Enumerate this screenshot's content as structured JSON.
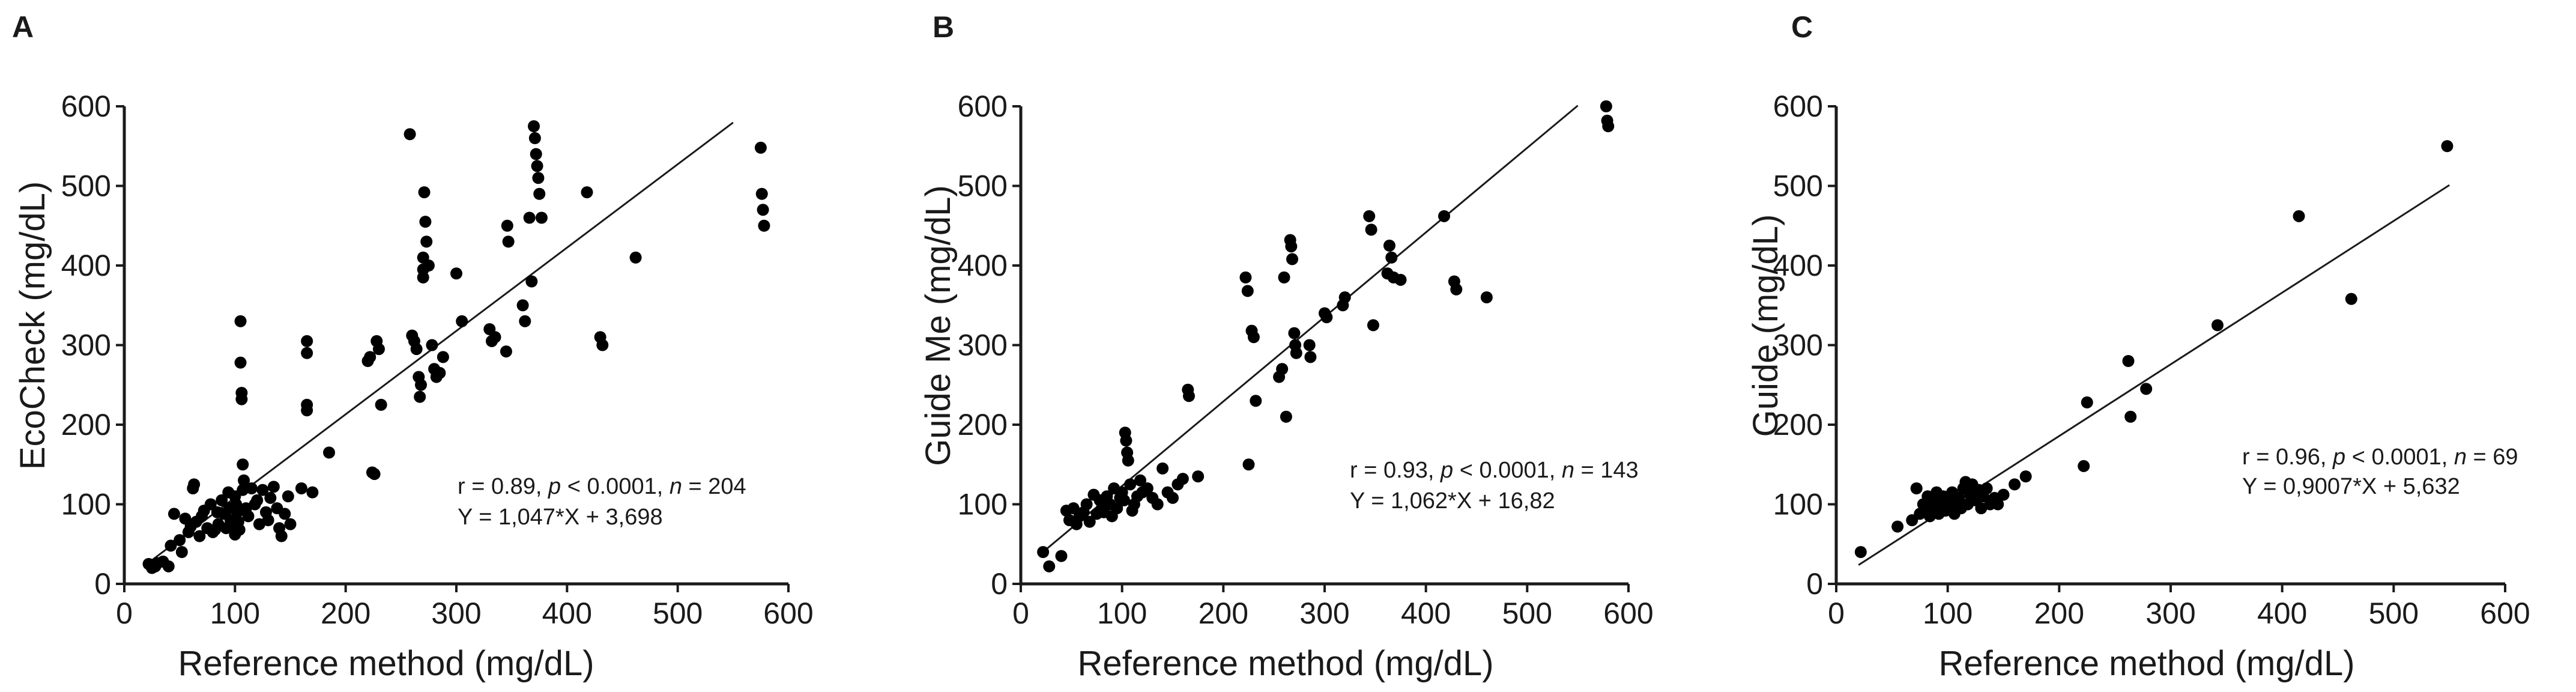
{
  "figure": {
    "panels": [
      "A",
      "B",
      "C"
    ]
  },
  "chart_data": [
    {
      "panel": "A",
      "type": "scatter",
      "xlabel": "Reference method (mg/dL)",
      "ylabel": "EcoCheck (mg/dL)",
      "xlim": [
        0,
        600
      ],
      "ylim": [
        0,
        600
      ],
      "xticks": [
        0,
        100,
        200,
        300,
        400,
        500,
        600
      ],
      "yticks": [
        0,
        100,
        200,
        300,
        400,
        500,
        600
      ],
      "stats": {
        "r": "r = 0.89, ",
        "p_sym": "p",
        "p_val": " < 0.0001, ",
        "n_sym": "n",
        "n_val": " =  204"
      },
      "equation": "Y = 1,047*X + 3,698",
      "fit": {
        "slope": 1.047,
        "intercept": 3.698,
        "x_range": [
          20,
          550
        ]
      },
      "points": [
        [
          22,
          25
        ],
        [
          25,
          20
        ],
        [
          28,
          22
        ],
        [
          30,
          26
        ],
        [
          35,
          28
        ],
        [
          40,
          22
        ],
        [
          42,
          48
        ],
        [
          45,
          88
        ],
        [
          50,
          55
        ],
        [
          52,
          40
        ],
        [
          55,
          82
        ],
        [
          58,
          65
        ],
        [
          60,
          72
        ],
        [
          62,
          120
        ],
        [
          63,
          125
        ],
        [
          65,
          78
        ],
        [
          68,
          60
        ],
        [
          70,
          85
        ],
        [
          72,
          92
        ],
        [
          75,
          70
        ],
        [
          78,
          100
        ],
        [
          80,
          65
        ],
        [
          82,
          68
        ],
        [
          84,
          90
        ],
        [
          85,
          75
        ],
        [
          88,
          105
        ],
        [
          90,
          88
        ],
        [
          92,
          70
        ],
        [
          94,
          115
        ],
        [
          95,
          95
        ],
        [
          96,
          80
        ],
        [
          98,
          72
        ],
        [
          100,
          110
        ],
        [
          100,
          62
        ],
        [
          101,
          100
        ],
        [
          102,
          90
        ],
        [
          103,
          78
        ],
        [
          104,
          68
        ],
        [
          105,
          330
        ],
        [
          105,
          278
        ],
        [
          106,
          240
        ],
        [
          106,
          232
        ],
        [
          107,
          150
        ],
        [
          107,
          118
        ],
        [
          108,
          130
        ],
        [
          110,
          95
        ],
        [
          112,
          85
        ],
        [
          115,
          120
        ],
        [
          118,
          100
        ],
        [
          120,
          105
        ],
        [
          122,
          75
        ],
        [
          125,
          118
        ],
        [
          128,
          90
        ],
        [
          130,
          80
        ],
        [
          132,
          108
        ],
        [
          135,
          122
        ],
        [
          138,
          95
        ],
        [
          140,
          70
        ],
        [
          142,
          60
        ],
        [
          145,
          88
        ],
        [
          148,
          110
        ],
        [
          150,
          75
        ],
        [
          160,
          120
        ],
        [
          165,
          305
        ],
        [
          165,
          290
        ],
        [
          165,
          225
        ],
        [
          165,
          218
        ],
        [
          170,
          115
        ],
        [
          185,
          165
        ],
        [
          220,
          280
        ],
        [
          222,
          285
        ],
        [
          224,
          140
        ],
        [
          226,
          138
        ],
        [
          228,
          305
        ],
        [
          230,
          295
        ],
        [
          232,
          225
        ],
        [
          258,
          565
        ],
        [
          260,
          312
        ],
        [
          262,
          305
        ],
        [
          264,
          295
        ],
        [
          266,
          260
        ],
        [
          267,
          235
        ],
        [
          268,
          250
        ],
        [
          270,
          410
        ],
        [
          270,
          395
        ],
        [
          270,
          385
        ],
        [
          271,
          492
        ],
        [
          272,
          455
        ],
        [
          273,
          430
        ],
        [
          275,
          400
        ],
        [
          278,
          300
        ],
        [
          280,
          270
        ],
        [
          282,
          260
        ],
        [
          285,
          265
        ],
        [
          288,
          285
        ],
        [
          300,
          390
        ],
        [
          305,
          330
        ],
        [
          330,
          320
        ],
        [
          332,
          305
        ],
        [
          335,
          310
        ],
        [
          345,
          292
        ],
        [
          346,
          450
        ],
        [
          347,
          430
        ],
        [
          360,
          350
        ],
        [
          362,
          330
        ],
        [
          366,
          460
        ],
        [
          368,
          380
        ],
        [
          370,
          575
        ],
        [
          371,
          560
        ],
        [
          372,
          540
        ],
        [
          373,
          525
        ],
        [
          374,
          510
        ],
        [
          375,
          490
        ],
        [
          377,
          460
        ],
        [
          418,
          492
        ],
        [
          430,
          310
        ],
        [
          432,
          300
        ],
        [
          462,
          410
        ],
        [
          575,
          548
        ],
        [
          576,
          490
        ],
        [
          577,
          470
        ],
        [
          578,
          450
        ]
      ]
    },
    {
      "panel": "B",
      "type": "scatter",
      "xlabel": "Reference method (mg/dL)",
      "ylabel": "Guide Me (mg/dL)",
      "xlim": [
        0,
        600
      ],
      "ylim": [
        0,
        600
      ],
      "xticks": [
        0,
        100,
        200,
        300,
        400,
        500,
        600
      ],
      "yticks": [
        0,
        100,
        200,
        300,
        400,
        500,
        600
      ],
      "stats": {
        "r": "r = 0.93, ",
        "p_sym": "p",
        "p_val": " < 0.0001, ",
        "n_sym": "n",
        "n_val": " =  143"
      },
      "equation": "Y = 1,062*X + 16,82",
      "fit": {
        "slope": 1.062,
        "intercept": 16.82,
        "x_range": [
          20,
          550
        ]
      },
      "points": [
        [
          22,
          40
        ],
        [
          28,
          22
        ],
        [
          40,
          35
        ],
        [
          45,
          92
        ],
        [
          48,
          80
        ],
        [
          52,
          95
        ],
        [
          55,
          75
        ],
        [
          58,
          85
        ],
        [
          62,
          90
        ],
        [
          65,
          100
        ],
        [
          68,
          78
        ],
        [
          72,
          112
        ],
        [
          75,
          88
        ],
        [
          78,
          105
        ],
        [
          80,
          95
        ],
        [
          82,
          90
        ],
        [
          85,
          110
        ],
        [
          88,
          100
        ],
        [
          90,
          85
        ],
        [
          92,
          120
        ],
        [
          95,
          95
        ],
        [
          98,
          108
        ],
        [
          100,
          115
        ],
        [
          102,
          105
        ],
        [
          103,
          190
        ],
        [
          104,
          180
        ],
        [
          105,
          165
        ],
        [
          106,
          155
        ],
        [
          108,
          125
        ],
        [
          110,
          92
        ],
        [
          112,
          100
        ],
        [
          115,
          110
        ],
        [
          118,
          130
        ],
        [
          120,
          115
        ],
        [
          125,
          120
        ],
        [
          130,
          108
        ],
        [
          135,
          100
        ],
        [
          140,
          145
        ],
        [
          145,
          115
        ],
        [
          150,
          108
        ],
        [
          155,
          125
        ],
        [
          160,
          132
        ],
        [
          165,
          244
        ],
        [
          166,
          236
        ],
        [
          175,
          135
        ],
        [
          222,
          385
        ],
        [
          224,
          368
        ],
        [
          225,
          150
        ],
        [
          228,
          318
        ],
        [
          230,
          310
        ],
        [
          232,
          230
        ],
        [
          255,
          260
        ],
        [
          258,
          270
        ],
        [
          260,
          385
        ],
        [
          262,
          210
        ],
        [
          266,
          432
        ],
        [
          267,
          424
        ],
        [
          268,
          408
        ],
        [
          270,
          315
        ],
        [
          271,
          300
        ],
        [
          272,
          290
        ],
        [
          285,
          300
        ],
        [
          286,
          285
        ],
        [
          300,
          340
        ],
        [
          302,
          335
        ],
        [
          318,
          350
        ],
        [
          320,
          360
        ],
        [
          344,
          462
        ],
        [
          346,
          445
        ],
        [
          348,
          325
        ],
        [
          362,
          390
        ],
        [
          364,
          425
        ],
        [
          366,
          410
        ],
        [
          368,
          385
        ],
        [
          375,
          382
        ],
        [
          418,
          462
        ],
        [
          428,
          380
        ],
        [
          430,
          370
        ],
        [
          460,
          360
        ],
        [
          578,
          600
        ],
        [
          579,
          582
        ],
        [
          580,
          575
        ]
      ]
    },
    {
      "panel": "C",
      "type": "scatter",
      "xlabel": "Reference method (mg/dL)",
      "ylabel": "Guide (mg/dL)",
      "xlim": [
        0,
        600
      ],
      "ylim": [
        0,
        600
      ],
      "xticks": [
        0,
        100,
        200,
        300,
        400,
        500,
        600
      ],
      "yticks": [
        0,
        100,
        200,
        300,
        400,
        500,
        600
      ],
      "stats": {
        "r": "r = 0.96, ",
        "p_sym": "p",
        "p_val": " < 0.0001, ",
        "n_sym": "n",
        "n_val": " =  69"
      },
      "equation": "Y = 0,9007*X + 5,632",
      "fit": {
        "slope": 0.9007,
        "intercept": 5.632,
        "x_range": [
          20,
          550
        ]
      },
      "points": [
        [
          22,
          40
        ],
        [
          55,
          72
        ],
        [
          68,
          80
        ],
        [
          72,
          120
        ],
        [
          75,
          88
        ],
        [
          78,
          100
        ],
        [
          80,
          92
        ],
        [
          82,
          110
        ],
        [
          84,
          85
        ],
        [
          86,
          105
        ],
        [
          88,
          95
        ],
        [
          90,
          115
        ],
        [
          92,
          88
        ],
        [
          94,
          100
        ],
        [
          96,
          110
        ],
        [
          98,
          92
        ],
        [
          100,
          105
        ],
        [
          102,
          95
        ],
        [
          104,
          115
        ],
        [
          106,
          88
        ],
        [
          108,
          100
        ],
        [
          110,
          108
        ],
        [
          112,
          95
        ],
        [
          114,
          120
        ],
        [
          116,
          128
        ],
        [
          118,
          100
        ],
        [
          120,
          112
        ],
        [
          122,
          125
        ],
        [
          125,
          105
        ],
        [
          128,
          118
        ],
        [
          130,
          95
        ],
        [
          132,
          110
        ],
        [
          135,
          120
        ],
        [
          138,
          100
        ],
        [
          142,
          108
        ],
        [
          145,
          100
        ],
        [
          150,
          112
        ],
        [
          160,
          125
        ],
        [
          170,
          135
        ],
        [
          222,
          148
        ],
        [
          225,
          228
        ],
        [
          262,
          280
        ],
        [
          264,
          210
        ],
        [
          278,
          245
        ],
        [
          342,
          325
        ],
        [
          415,
          462
        ],
        [
          462,
          358
        ],
        [
          548,
          550
        ]
      ]
    }
  ]
}
